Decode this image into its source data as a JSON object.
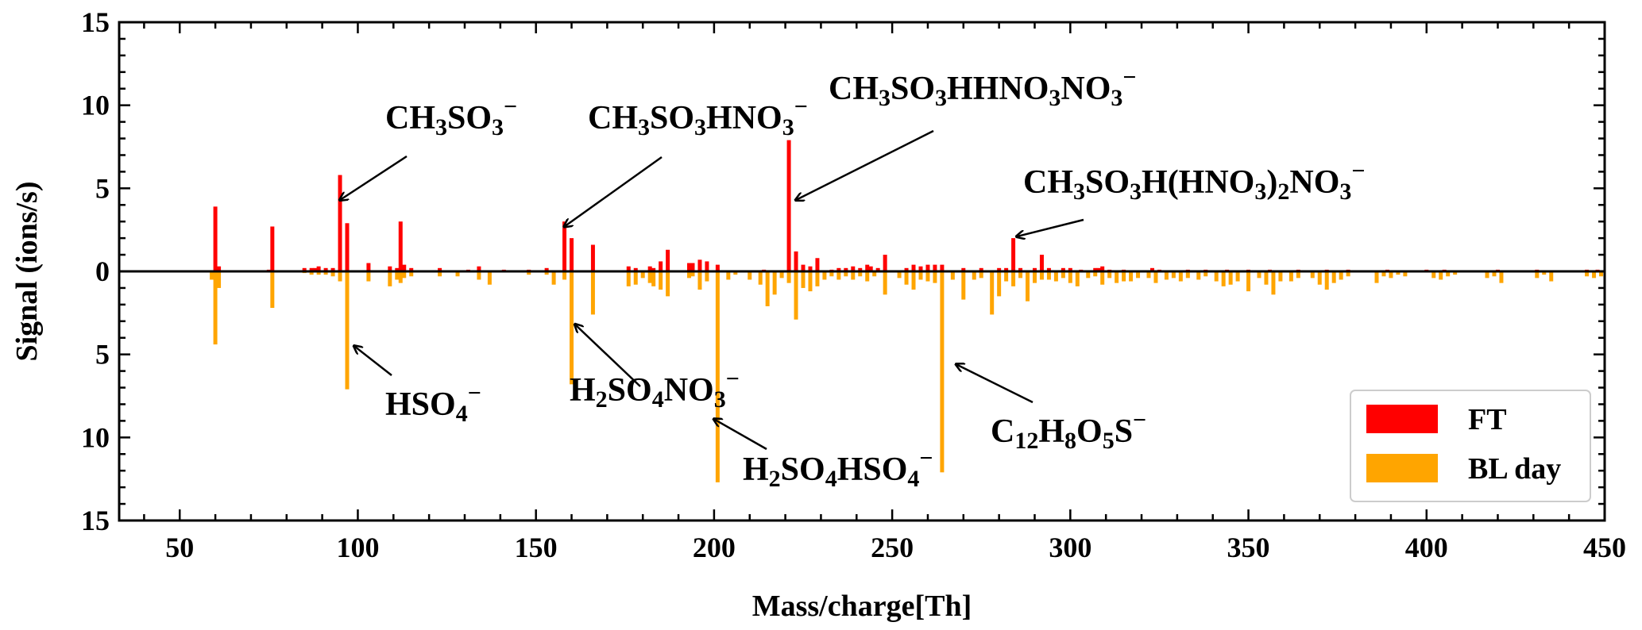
{
  "chart_data": {
    "type": "bar",
    "title": "",
    "xlabel": "Mass/charge[Th]",
    "ylabel": "Signal (ions/s)",
    "xlim": [
      33,
      450
    ],
    "ylim": [
      -15,
      15
    ],
    "y_display": "absolute values; FT plotted upward, BL day plotted downward (mirrored)",
    "x_ticks": [
      50,
      100,
      150,
      200,
      250,
      300,
      350,
      400,
      450
    ],
    "y_ticks": [
      -15,
      -10,
      -5,
      0,
      5,
      10,
      15
    ],
    "legend_position": "bottom-right",
    "series": [
      {
        "name": "FT",
        "color": "#ff0000",
        "direction": "up",
        "points": [
          [
            60,
            3.9
          ],
          [
            61,
            0.3
          ],
          [
            75,
            0.1
          ],
          [
            76,
            2.7
          ],
          [
            85,
            0.2
          ],
          [
            87,
            0.2
          ],
          [
            88,
            0.2
          ],
          [
            89,
            0.3
          ],
          [
            91,
            0.2
          ],
          [
            93,
            0.2
          ],
          [
            95,
            5.8
          ],
          [
            97,
            2.9
          ],
          [
            103,
            0.5
          ],
          [
            109,
            0.3
          ],
          [
            111,
            0.2
          ],
          [
            112,
            3.0
          ],
          [
            113,
            0.4
          ],
          [
            115,
            0.2
          ],
          [
            123,
            0.2
          ],
          [
            131,
            0.1
          ],
          [
            134,
            0.3
          ],
          [
            141,
            0.1
          ],
          [
            148,
            0.1
          ],
          [
            153,
            0.2
          ],
          [
            158,
            3.0
          ],
          [
            160,
            2.0
          ],
          [
            166,
            1.6
          ],
          [
            176,
            0.3
          ],
          [
            178,
            0.2
          ],
          [
            182,
            0.3
          ],
          [
            183,
            0.2
          ],
          [
            185,
            0.6
          ],
          [
            187,
            1.3
          ],
          [
            193,
            0.5
          ],
          [
            194,
            0.5
          ],
          [
            196,
            0.7
          ],
          [
            198,
            0.6
          ],
          [
            201,
            0.4
          ],
          [
            214,
            0.1
          ],
          [
            221,
            7.9
          ],
          [
            223,
            1.2
          ],
          [
            225,
            0.4
          ],
          [
            227,
            0.3
          ],
          [
            229,
            0.8
          ],
          [
            233,
            0.1
          ],
          [
            235,
            0.2
          ],
          [
            237,
            0.2
          ],
          [
            239,
            0.3
          ],
          [
            241,
            0.2
          ],
          [
            243,
            0.4
          ],
          [
            244,
            0.3
          ],
          [
            246,
            0.2
          ],
          [
            248,
            1.0
          ],
          [
            254,
            0.2
          ],
          [
            256,
            0.4
          ],
          [
            258,
            0.3
          ],
          [
            260,
            0.4
          ],
          [
            262,
            0.4
          ],
          [
            264,
            0.4
          ],
          [
            270,
            0.2
          ],
          [
            275,
            0.2
          ],
          [
            280,
            0.2
          ],
          [
            282,
            0.2
          ],
          [
            284,
            2.0
          ],
          [
            286,
            0.2
          ],
          [
            290,
            0.2
          ],
          [
            292,
            1.0
          ],
          [
            294,
            0.2
          ],
          [
            298,
            0.2
          ],
          [
            300,
            0.2
          ],
          [
            303,
            0.1
          ],
          [
            307,
            0.2
          ],
          [
            308,
            0.2
          ],
          [
            309,
            0.3
          ],
          [
            311,
            0.1
          ],
          [
            315,
            0.1
          ],
          [
            323,
            0.2
          ],
          [
            325,
            0.1
          ],
          [
            333,
            0.1
          ],
          [
            338,
            0.1
          ],
          [
            344,
            0.1
          ],
          [
            350,
            0.1
          ],
          [
            356,
            0.1
          ],
          [
            364,
            0.1
          ],
          [
            372,
            0.1
          ],
          [
            378,
            0.1
          ],
          [
            389,
            0.1
          ],
          [
            400,
            0.1
          ],
          [
            405,
            0.1
          ],
          [
            420,
            0.1
          ],
          [
            431,
            0.1
          ],
          [
            445,
            0.1
          ],
          [
            448,
            0.1
          ]
        ]
      },
      {
        "name": "BL day",
        "color": "#ffa500",
        "direction": "down",
        "points": [
          [
            59,
            0.5
          ],
          [
            60,
            4.4
          ],
          [
            61,
            1.0
          ],
          [
            76,
            2.2
          ],
          [
            85,
            0.1
          ],
          [
            87,
            0.2
          ],
          [
            89,
            0.2
          ],
          [
            91,
            0.2
          ],
          [
            93,
            0.3
          ],
          [
            95,
            0.6
          ],
          [
            97,
            7.1
          ],
          [
            103,
            0.6
          ],
          [
            109,
            0.9
          ],
          [
            111,
            0.5
          ],
          [
            112,
            0.7
          ],
          [
            113,
            0.4
          ],
          [
            115,
            0.3
          ],
          [
            123,
            0.3
          ],
          [
            128,
            0.3
          ],
          [
            134,
            0.5
          ],
          [
            137,
            0.8
          ],
          [
            148,
            0.2
          ],
          [
            153,
            0.2
          ],
          [
            155,
            0.8
          ],
          [
            158,
            0.5
          ],
          [
            160,
            6.8
          ],
          [
            166,
            2.6
          ],
          [
            176,
            0.9
          ],
          [
            178,
            0.8
          ],
          [
            180,
            0.4
          ],
          [
            182,
            0.7
          ],
          [
            183,
            0.9
          ],
          [
            185,
            1.1
          ],
          [
            187,
            1.5
          ],
          [
            193,
            0.4
          ],
          [
            194,
            0.3
          ],
          [
            196,
            1.1
          ],
          [
            198,
            0.6
          ],
          [
            201,
            12.7
          ],
          [
            204,
            0.5
          ],
          [
            206,
            0.2
          ],
          [
            210,
            0.5
          ],
          [
            213,
            0.8
          ],
          [
            215,
            2.1
          ],
          [
            217,
            1.4
          ],
          [
            219,
            0.4
          ],
          [
            221,
            0.7
          ],
          [
            223,
            2.9
          ],
          [
            225,
            1.0
          ],
          [
            227,
            1.2
          ],
          [
            229,
            0.9
          ],
          [
            231,
            0.5
          ],
          [
            233,
            0.3
          ],
          [
            235,
            0.5
          ],
          [
            237,
            0.3
          ],
          [
            239,
            0.5
          ],
          [
            241,
            0.3
          ],
          [
            243,
            0.6
          ],
          [
            245,
            0.3
          ],
          [
            248,
            1.4
          ],
          [
            252,
            0.4
          ],
          [
            254,
            0.8
          ],
          [
            256,
            1.1
          ],
          [
            258,
            0.5
          ],
          [
            260,
            0.6
          ],
          [
            262,
            0.7
          ],
          [
            264,
            12.1
          ],
          [
            267,
            0.5
          ],
          [
            270,
            1.7
          ],
          [
            273,
            0.5
          ],
          [
            275,
            0.4
          ],
          [
            278,
            2.6
          ],
          [
            280,
            1.5
          ],
          [
            282,
            0.6
          ],
          [
            284,
            0.9
          ],
          [
            286,
            0.4
          ],
          [
            288,
            1.8
          ],
          [
            290,
            0.7
          ],
          [
            292,
            0.5
          ],
          [
            294,
            0.5
          ],
          [
            296,
            0.6
          ],
          [
            298,
            0.4
          ],
          [
            300,
            0.7
          ],
          [
            302,
            0.9
          ],
          [
            305,
            0.4
          ],
          [
            307,
            0.3
          ],
          [
            309,
            0.8
          ],
          [
            311,
            0.4
          ],
          [
            313,
            0.7
          ],
          [
            315,
            0.6
          ],
          [
            317,
            0.6
          ],
          [
            319,
            0.4
          ],
          [
            322,
            0.4
          ],
          [
            324,
            0.7
          ],
          [
            327,
            0.5
          ],
          [
            329,
            0.4
          ],
          [
            331,
            0.6
          ],
          [
            333,
            0.4
          ],
          [
            336,
            0.5
          ],
          [
            338,
            0.3
          ],
          [
            341,
            0.6
          ],
          [
            343,
            0.9
          ],
          [
            345,
            0.8
          ],
          [
            347,
            0.6
          ],
          [
            350,
            1.2
          ],
          [
            353,
            0.4
          ],
          [
            355,
            0.8
          ],
          [
            357,
            1.4
          ],
          [
            359,
            0.6
          ],
          [
            362,
            0.6
          ],
          [
            364,
            0.4
          ],
          [
            368,
            0.4
          ],
          [
            370,
            0.8
          ],
          [
            372,
            1.1
          ],
          [
            374,
            0.7
          ],
          [
            376,
            0.5
          ],
          [
            378,
            0.3
          ],
          [
            386,
            0.7
          ],
          [
            388,
            0.3
          ],
          [
            390,
            0.4
          ],
          [
            392,
            0.2
          ],
          [
            394,
            0.3
          ],
          [
            402,
            0.4
          ],
          [
            404,
            0.5
          ],
          [
            406,
            0.3
          ],
          [
            408,
            0.2
          ],
          [
            417,
            0.4
          ],
          [
            419,
            0.3
          ],
          [
            421,
            0.7
          ],
          [
            431,
            0.4
          ],
          [
            433,
            0.2
          ],
          [
            435,
            0.6
          ],
          [
            445,
            0.3
          ],
          [
            447,
            0.4
          ],
          [
            449,
            0.3
          ]
        ]
      }
    ],
    "annotations": [
      {
        "text": [
          [
            "CH",
            ""
          ],
          [
            "3",
            "sub"
          ],
          [
            "SO",
            ""
          ],
          [
            "3",
            "sub"
          ],
          [
            "−",
            "sup"
          ]
        ],
        "target": [
          95,
          4.3
        ],
        "side": "up"
      },
      {
        "text": [
          [
            "CH",
            ""
          ],
          [
            "3",
            "sub"
          ],
          [
            "SO",
            ""
          ],
          [
            "3",
            "sub"
          ],
          [
            "HNO",
            ""
          ],
          [
            "3",
            "sub"
          ],
          [
            "−",
            "sup"
          ]
        ],
        "target": [
          158,
          2.7
        ],
        "side": "up"
      },
      {
        "text": [
          [
            "CH",
            ""
          ],
          [
            "3",
            "sub"
          ],
          [
            "SO",
            ""
          ],
          [
            "3",
            "sub"
          ],
          [
            "HHNO",
            ""
          ],
          [
            "3",
            "sub"
          ],
          [
            "NO",
            ""
          ],
          [
            "3",
            "sub"
          ],
          [
            "−",
            "sup"
          ]
        ],
        "target": [
          223,
          4.3
        ],
        "side": "up"
      },
      {
        "text": [
          [
            "CH",
            ""
          ],
          [
            "3",
            "sub"
          ],
          [
            "SO",
            ""
          ],
          [
            "3",
            "sub"
          ],
          [
            "H(HNO",
            ""
          ],
          [
            "3",
            "sub"
          ],
          [
            ")",
            ""
          ],
          [
            "2",
            "sub"
          ],
          [
            "NO",
            ""
          ],
          [
            "3",
            "sub"
          ],
          [
            "−",
            "sup"
          ]
        ],
        "target": [
          285,
          2.1
        ],
        "side": "up"
      },
      {
        "text": [
          [
            "HSO",
            ""
          ],
          [
            "4",
            "sub"
          ],
          [
            "−",
            "sup"
          ]
        ],
        "target": [
          99,
          -4.5
        ],
        "side": "down"
      },
      {
        "text": [
          [
            "H",
            ""
          ],
          [
            "2",
            "sub"
          ],
          [
            "SO",
            ""
          ],
          [
            "4",
            "sub"
          ],
          [
            "NO",
            ""
          ],
          [
            "3",
            "sub"
          ],
          [
            "−",
            "sup"
          ]
        ],
        "target": [
          161,
          -3.2
        ],
        "side": "down"
      },
      {
        "text": [
          [
            "H",
            ""
          ],
          [
            "2",
            "sub"
          ],
          [
            "SO",
            ""
          ],
          [
            "4",
            "sub"
          ],
          [
            "HSO",
            ""
          ],
          [
            "4",
            "sub"
          ],
          [
            "−",
            "sup"
          ]
        ],
        "target": [
          200,
          -8.9
        ],
        "side": "down"
      },
      {
        "text": [
          [
            "C",
            ""
          ],
          [
            "12",
            "sub"
          ],
          [
            "H",
            ""
          ],
          [
            "8",
            "sub"
          ],
          [
            "O",
            ""
          ],
          [
            "5",
            "sub"
          ],
          [
            "S",
            ""
          ],
          [
            "−",
            "sup"
          ]
        ],
        "target": [
          268,
          -5.6
        ],
        "side": "down"
      }
    ]
  }
}
